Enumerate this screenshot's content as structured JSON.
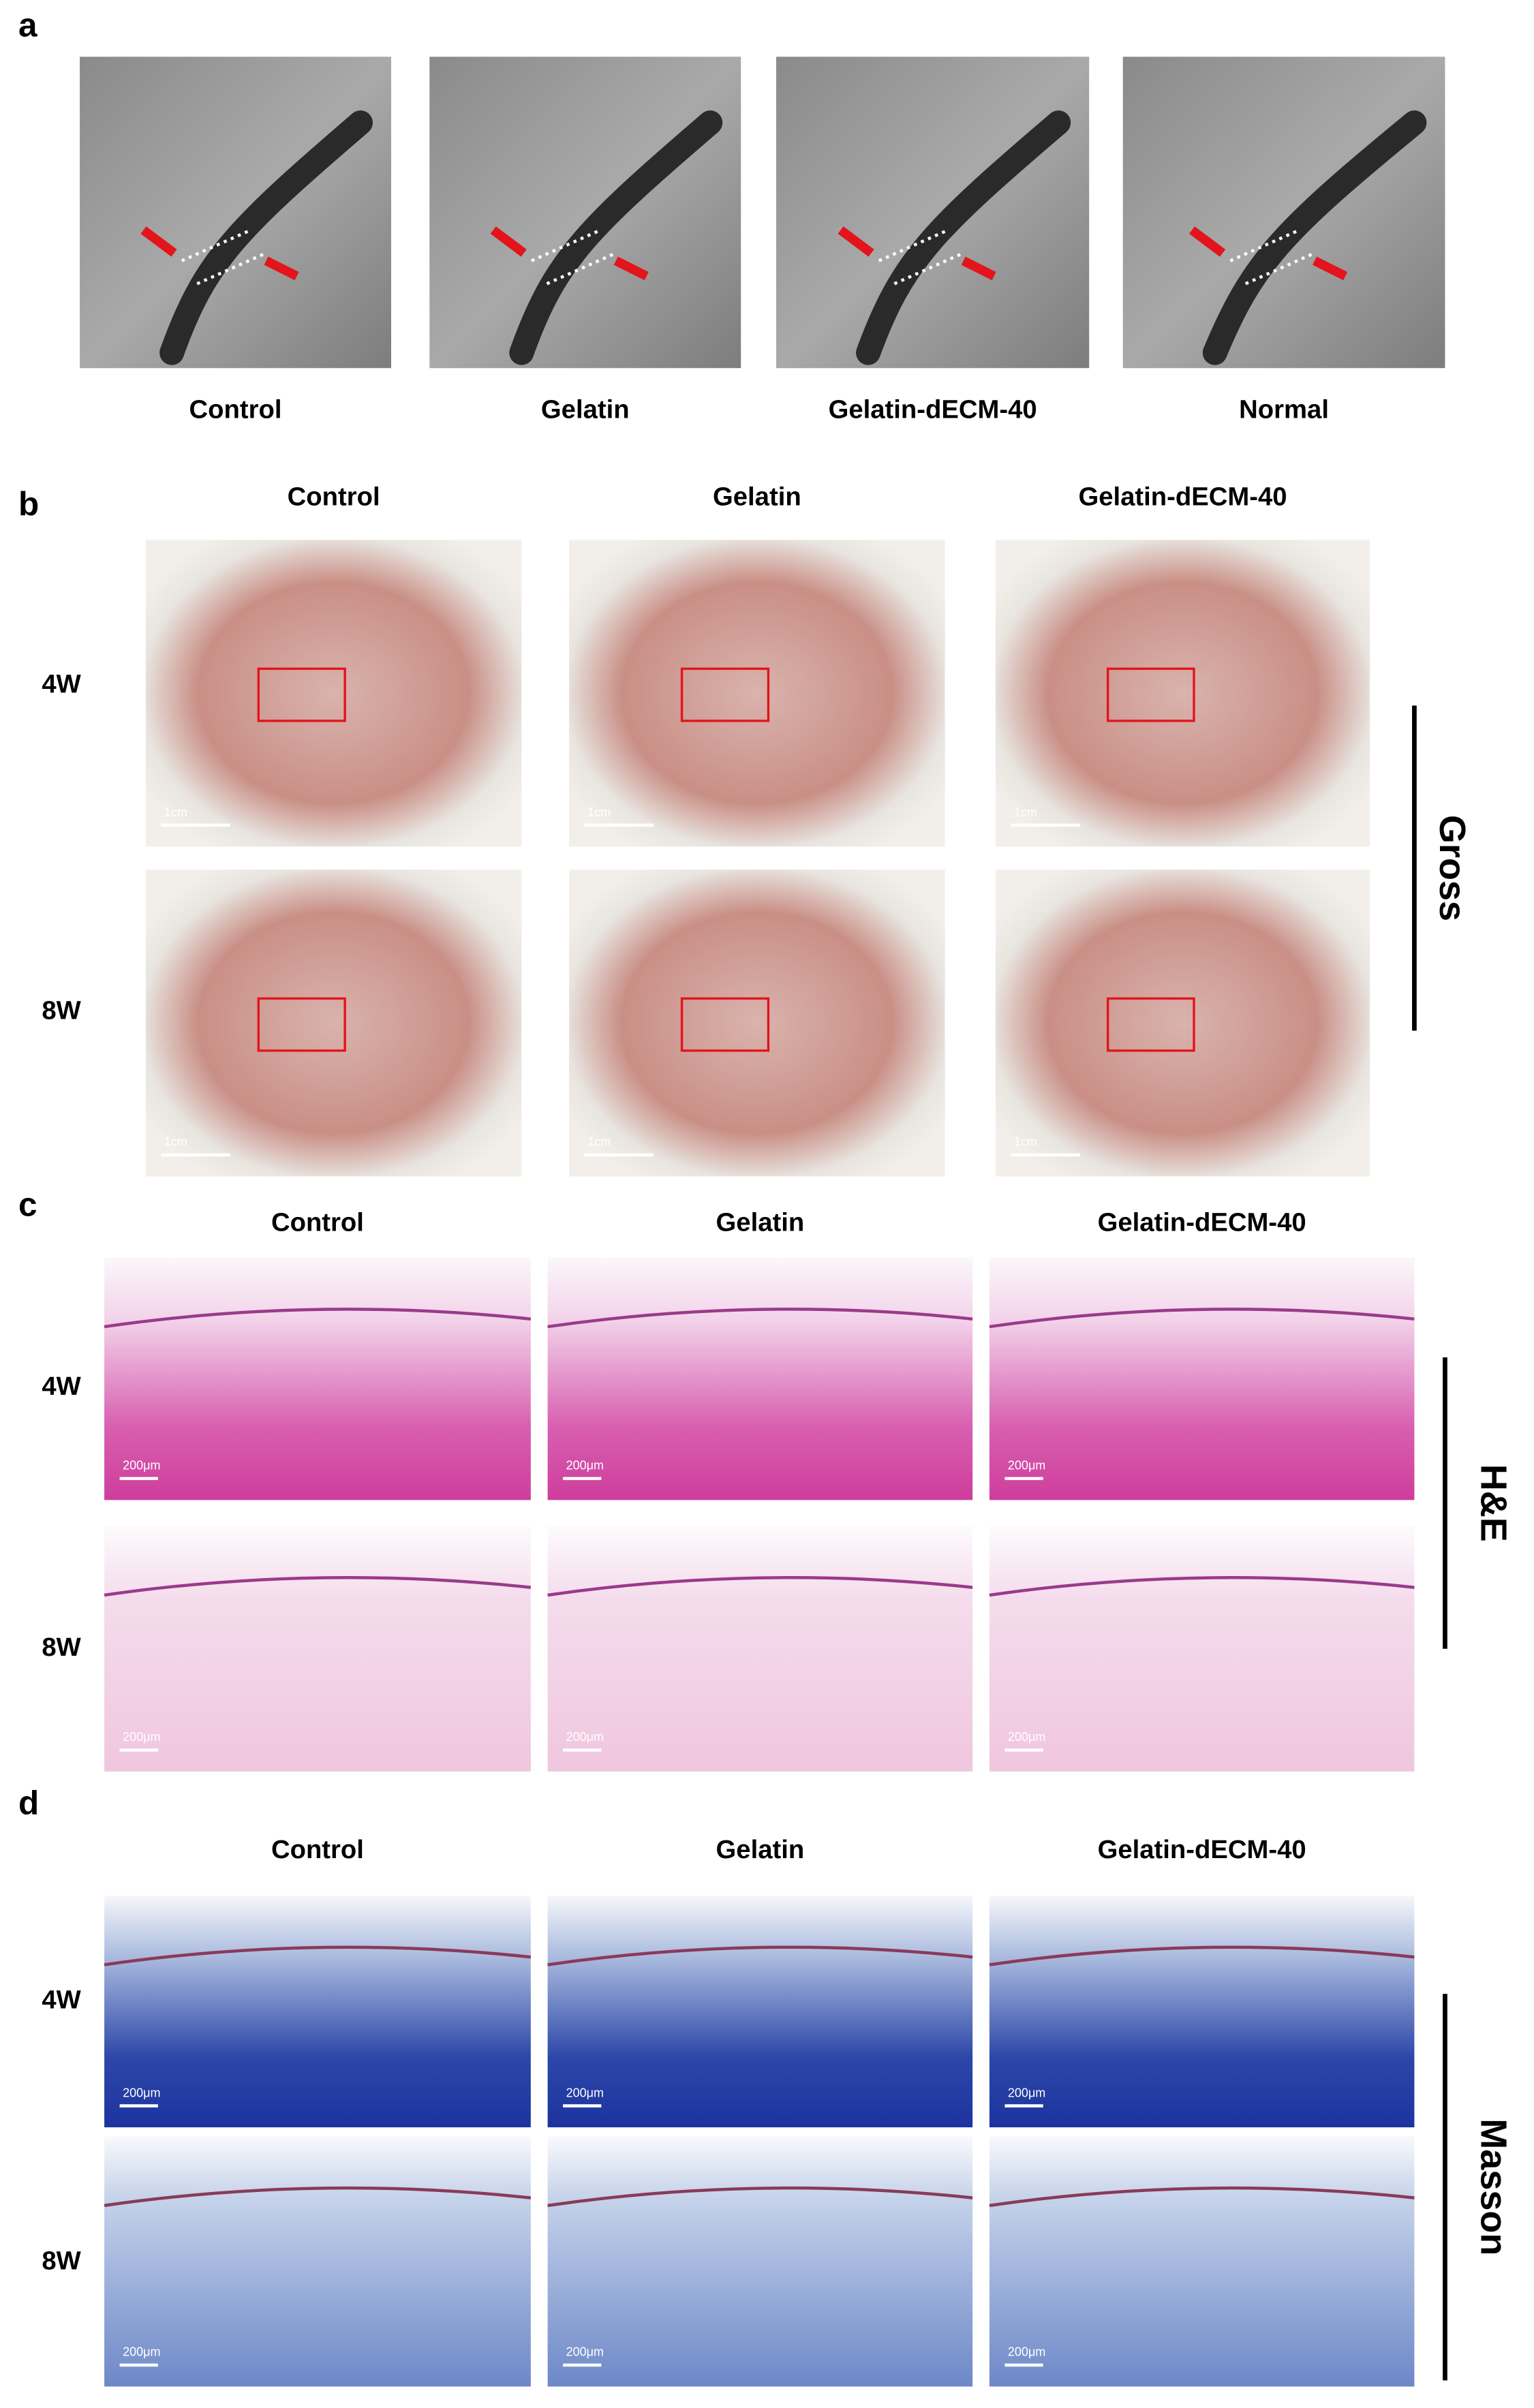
{
  "panel_a": {
    "label": "a",
    "captions": [
      "Control",
      "Gelatin",
      "Gelatin-dECM-40",
      "Normal"
    ]
  },
  "panel_b": {
    "label": "b",
    "columns": [
      "Control",
      "Gelatin",
      "Gelatin-dECM-40"
    ],
    "rows": [
      "4W",
      "8W"
    ],
    "side_label": "Gross",
    "scale_bar": "1cm"
  },
  "panel_c": {
    "label": "c",
    "columns": [
      "Control",
      "Gelatin",
      "Gelatin-dECM-40"
    ],
    "rows": [
      "4W",
      "8W"
    ],
    "side_label": "H&E",
    "scale_bar": "200μm"
  },
  "panel_d": {
    "label": "d",
    "columns": [
      "Control",
      "Gelatin",
      "Gelatin-dECM-40"
    ],
    "rows": [
      "4W",
      "8W"
    ],
    "side_label": "Masson",
    "scale_bar": "200μm"
  }
}
